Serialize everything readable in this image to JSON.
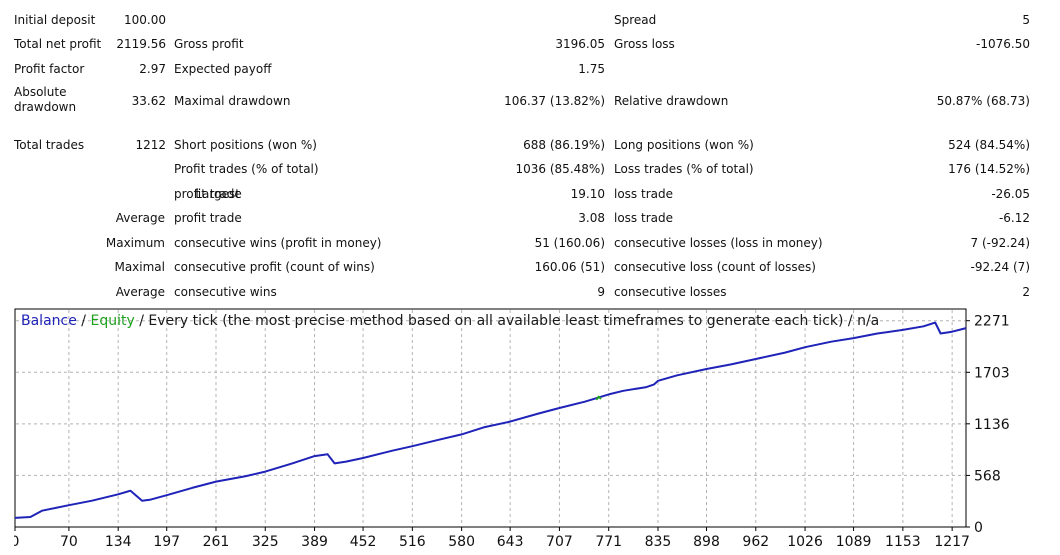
{
  "report": {
    "initial_deposit": {
      "label": "Initial deposit",
      "value": "100.00"
    },
    "spread": {
      "label": "Spread",
      "value": "5"
    },
    "total_net_profit": {
      "label": "Total net profit",
      "value": "2119.56"
    },
    "gross_profit": {
      "label": "Gross profit",
      "value": "3196.05"
    },
    "gross_loss": {
      "label": "Gross loss",
      "value": "-1076.50"
    },
    "profit_factor": {
      "label": "Profit factor",
      "value": "2.97"
    },
    "expected_payoff": {
      "label": "Expected payoff",
      "value": "1.75"
    },
    "absolute_drawdown": {
      "label": "Absolute drawdown",
      "value": "33.62"
    },
    "maximal_drawdown": {
      "label": "Maximal drawdown",
      "value": "106.37 (13.82%)"
    },
    "relative_drawdown": {
      "label": "Relative drawdown",
      "value": "50.87% (68.73)"
    },
    "total_trades": {
      "label": "Total trades",
      "value": "1212"
    },
    "short_positions": {
      "label": "Short positions (won %)",
      "value": "688 (86.19%)"
    },
    "long_positions": {
      "label": "Long positions (won %)",
      "value": "524 (84.54%)"
    },
    "profit_trades": {
      "label": "Profit trades (% of total)",
      "value": "1036 (85.48%)"
    },
    "loss_trades": {
      "label": "Loss trades (% of total)",
      "value": "176 (14.52%)"
    },
    "largest": {
      "prefix": "Largest",
      "profit_label": "profit trade",
      "profit_value": "19.10",
      "loss_label": "loss trade",
      "loss_value": "-26.05"
    },
    "average": {
      "prefix": "Average",
      "profit_label": "profit trade",
      "profit_value": "3.08",
      "loss_label": "loss trade",
      "loss_value": "-6.12"
    },
    "maximum": {
      "prefix": "Maximum",
      "wins_label": "consecutive wins (profit in money)",
      "wins_value": "51 (160.06)",
      "losses_label": "consecutive losses (loss in money)",
      "losses_value": "7 (-92.24)"
    },
    "maximal": {
      "prefix": "Maximal",
      "profit_label": "consecutive profit (count of wins)",
      "profit_value": "160.06 (51)",
      "loss_label": "consecutive loss (count of losses)",
      "loss_value": "-92.24 (7)"
    },
    "average_consecutive": {
      "prefix": "Average",
      "wins_label": "consecutive wins",
      "wins_value": "9",
      "losses_label": "consecutive losses",
      "losses_value": "2"
    }
  },
  "chart_legend": {
    "balance": "Balance",
    "sep1": " / ",
    "equity": "Equity",
    "rest": " / Every tick (the most precise method based on all available least timeframes to generate each tick) / n/a"
  },
  "chart_data": {
    "type": "line",
    "title": "",
    "xlabel": "",
    "ylabel": "",
    "x_ticks": [
      0,
      70,
      134,
      197,
      261,
      325,
      389,
      452,
      516,
      580,
      643,
      707,
      771,
      835,
      898,
      962,
      1026,
      1089,
      1153,
      1217
    ],
    "y_ticks": [
      0,
      568,
      1136,
      1703,
      2271
    ],
    "xlim": [
      0,
      1235
    ],
    "ylim": [
      0,
      2400
    ],
    "grid": true,
    "series": [
      {
        "name": "Balance",
        "color": "#1f23b8",
        "x": [
          0,
          20,
          35,
          70,
          100,
          134,
          150,
          165,
          175,
          197,
          230,
          261,
          300,
          325,
          360,
          389,
          406,
          415,
          430,
          452,
          490,
          516,
          550,
          580,
          610,
          643,
          680,
          707,
          740,
          771,
          790,
          820,
          830,
          835,
          860,
          898,
          930,
          962,
          1000,
          1026,
          1060,
          1089,
          1120,
          1153,
          1180,
          1195,
          1202,
          1217,
          1235
        ],
        "y": [
          100,
          110,
          180,
          240,
          290,
          360,
          400,
          290,
          300,
          350,
          430,
          500,
          560,
          610,
          700,
          780,
          800,
          700,
          720,
          760,
          840,
          890,
          960,
          1020,
          1100,
          1160,
          1250,
          1310,
          1380,
          1460,
          1500,
          1540,
          1570,
          1610,
          1670,
          1740,
          1790,
          1850,
          1920,
          1980,
          2040,
          2080,
          2130,
          2170,
          2210,
          2250,
          2130,
          2150,
          2190
        ]
      },
      {
        "name": "Equity",
        "color": "#1ea11e",
        "x": [
          755,
          758,
          761
        ],
        "y": [
          1400,
          1435,
          1410
        ]
      }
    ]
  }
}
